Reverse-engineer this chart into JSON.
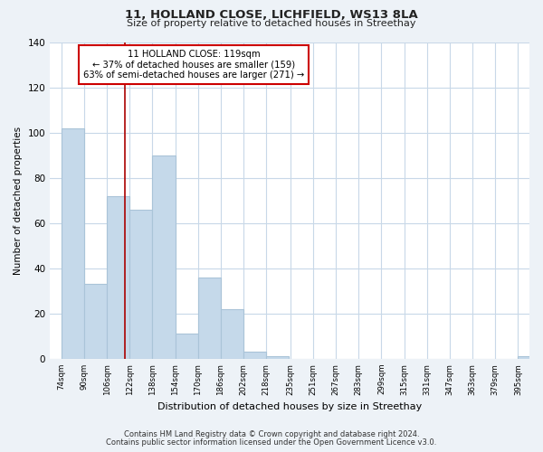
{
  "title": "11, HOLLAND CLOSE, LICHFIELD, WS13 8LA",
  "subtitle": "Size of property relative to detached houses in Streethay",
  "xlabel": "Distribution of detached houses by size in Streethay",
  "ylabel": "Number of detached properties",
  "bar_edges": [
    74,
    90,
    106,
    122,
    138,
    154,
    170,
    186,
    202,
    218,
    235,
    251,
    267,
    283,
    299,
    315,
    331,
    347,
    363,
    379,
    395
  ],
  "bar_heights": [
    102,
    33,
    72,
    66,
    90,
    11,
    36,
    22,
    3,
    1,
    0,
    0,
    0,
    0,
    0,
    0,
    0,
    0,
    0,
    0,
    1
  ],
  "bar_color": "#c5d9ea",
  "bar_edge_color": "#aac4d8",
  "property_line_x": 119,
  "property_line_color": "#aa0000",
  "annotation_title": "11 HOLLAND CLOSE: 119sqm",
  "annotation_line1": "← 37% of detached houses are smaller (159)",
  "annotation_line2": "63% of semi-detached houses are larger (271) →",
  "annotation_box_color": "#ffffff",
  "annotation_box_edge": "#cc0000",
  "ylim": [
    0,
    140
  ],
  "footnote1": "Contains HM Land Registry data © Crown copyright and database right 2024.",
  "footnote2": "Contains public sector information licensed under the Open Government Licence v3.0.",
  "background_color": "#edf2f7",
  "plot_bg_color": "#ffffff",
  "grid_color": "#c8d8e8"
}
